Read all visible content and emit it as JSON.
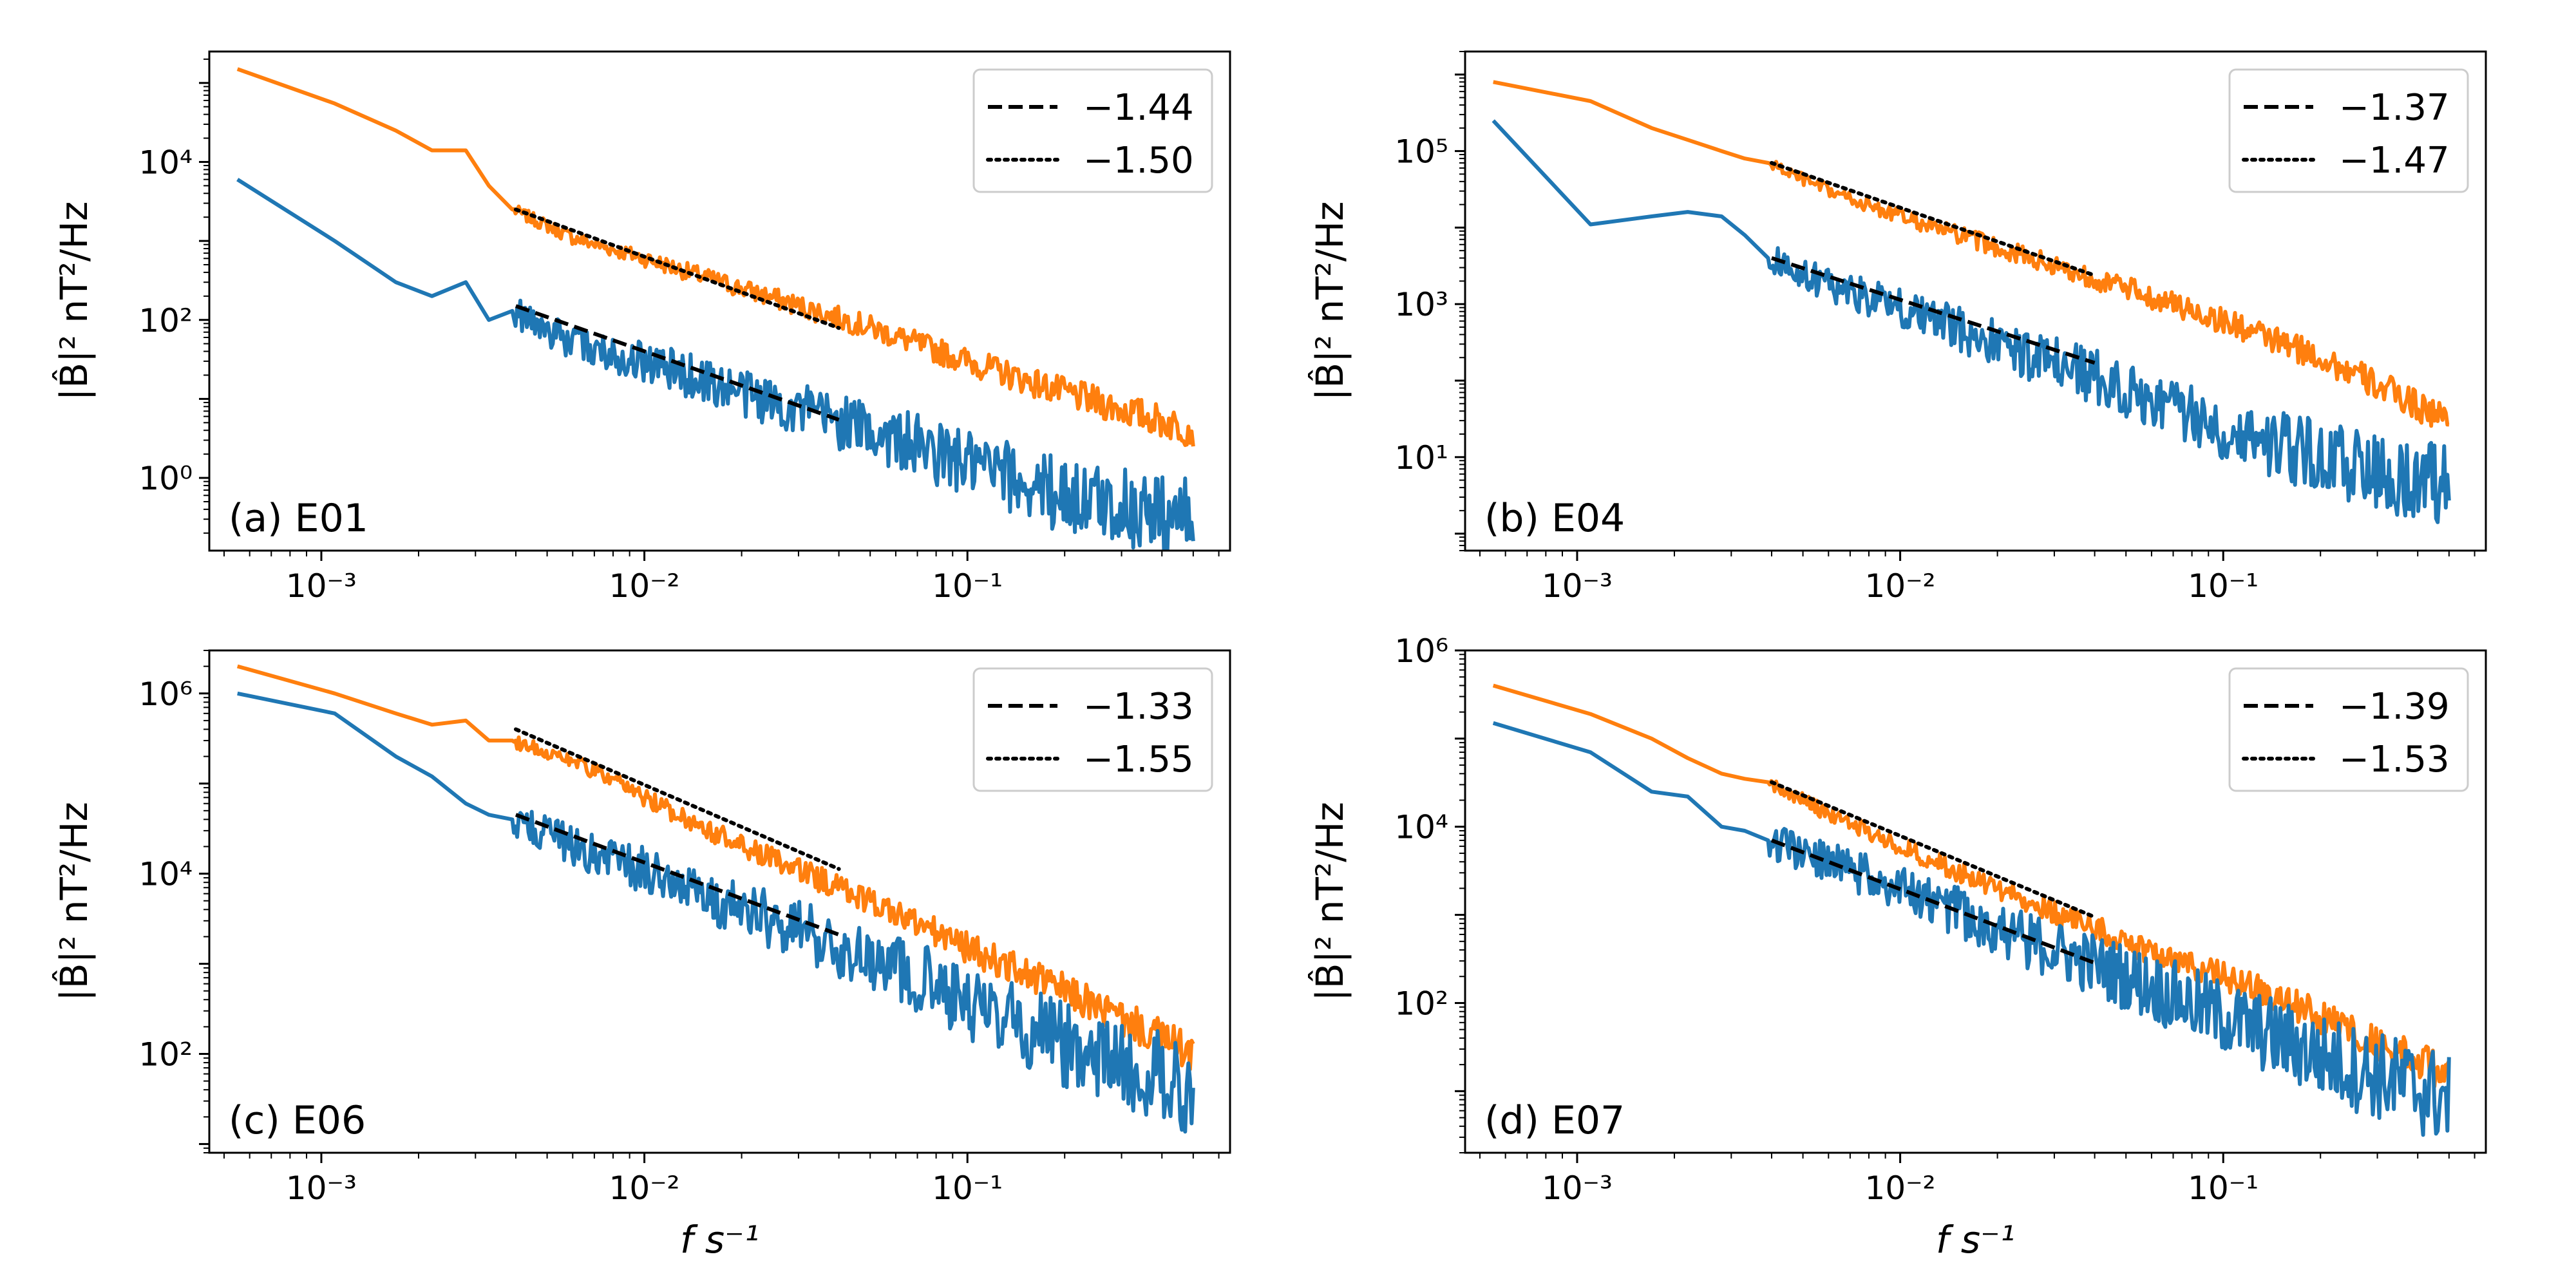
{
  "colors": {
    "lower": "#1f77b4",
    "upper": "#ff7f0e",
    "fit": "#000000",
    "frame": "#000000",
    "legend_border": "#cccccc"
  },
  "axis_labels": {
    "ylabel_html": "|B̂|² nT²/Hz",
    "xlabel": "f s⁻¹"
  },
  "x_ticks": [
    {
      "value": 0.001,
      "label": "10⁻³"
    },
    {
      "value": 0.01,
      "label": "10⁻²"
    },
    {
      "value": 0.1,
      "label": "10⁻¹"
    }
  ],
  "chart_data": [
    {
      "type": "line",
      "panel": "(a) E01",
      "xscale": "log",
      "yscale": "log",
      "xlim": [
        0.00045,
        0.65
      ],
      "ylim": [
        0.12,
        250000
      ],
      "yticks": [
        {
          "value": 1,
          "label": "10⁰"
        },
        {
          "value": 100,
          "label": "10²"
        },
        {
          "value": 10000,
          "label": "10⁴"
        }
      ],
      "series": [
        {
          "name": "upper",
          "color": "#ff7f0e",
          "x": [
            0.00055,
            0.0011,
            0.0017,
            0.0022,
            0.0028,
            0.0033,
            0.0039,
            0.006,
            0.01,
            0.02,
            0.05,
            0.1,
            0.2,
            0.5
          ],
          "y": [
            150000,
            55000,
            25000,
            14000,
            14000,
            5000,
            2500,
            1100,
            600,
            250,
            80,
            30,
            12,
            4
          ]
        },
        {
          "name": "lower",
          "color": "#1f77b4",
          "x": [
            0.00055,
            0.0011,
            0.0017,
            0.0022,
            0.0028,
            0.0033,
            0.0039,
            0.006,
            0.01,
            0.02,
            0.05,
            0.1,
            0.2,
            0.5
          ],
          "y": [
            6000,
            1000,
            300,
            200,
            300,
            100,
            130,
            50,
            30,
            12,
            4,
            1.5,
            0.6,
            0.3
          ]
        }
      ],
      "fits": [
        {
          "legend": "−1.44",
          "style": "dashed",
          "slope": -1.44,
          "x_range": [
            0.004,
            0.04
          ],
          "y_at_start": 150
        },
        {
          "legend": "−1.50",
          "style": "dotted",
          "slope": -1.5,
          "x_range": [
            0.004,
            0.04
          ],
          "y_at_start": 2500
        }
      ]
    },
    {
      "type": "line",
      "panel": "(b) E04",
      "xscale": "log",
      "yscale": "log",
      "xlim": [
        0.00045,
        0.65
      ],
      "ylim": [
        0.6,
        2000000
      ],
      "yticks": [
        {
          "value": 10,
          "label": "10¹"
        },
        {
          "value": 1000,
          "label": "10³"
        },
        {
          "value": 100000,
          "label": "10⁵"
        }
      ],
      "series": [
        {
          "name": "upper",
          "color": "#ff7f0e",
          "x": [
            0.00055,
            0.0011,
            0.0017,
            0.0022,
            0.0028,
            0.0033,
            0.0039,
            0.006,
            0.01,
            0.02,
            0.05,
            0.1,
            0.2,
            0.5
          ],
          "y": [
            800000,
            450000,
            200000,
            140000,
            100000,
            80000,
            70000,
            30000,
            14000,
            5500,
            1600,
            600,
            200,
            30
          ]
        },
        {
          "name": "lower",
          "color": "#1f77b4",
          "x": [
            0.00055,
            0.0011,
            0.0017,
            0.0022,
            0.0028,
            0.0033,
            0.0039,
            0.006,
            0.01,
            0.02,
            0.05,
            0.1,
            0.2,
            0.5
          ],
          "y": [
            250000,
            11000,
            14000,
            16000,
            14000,
            8000,
            4000,
            1800,
            900,
            300,
            80,
            25,
            10,
            4
          ]
        }
      ],
      "fits": [
        {
          "legend": "−1.37",
          "style": "dashed",
          "slope": -1.37,
          "x_range": [
            0.004,
            0.04
          ],
          "y_at_start": 4000
        },
        {
          "legend": "−1.47",
          "style": "dotted",
          "slope": -1.47,
          "x_range": [
            0.004,
            0.04
          ],
          "y_at_start": 70000
        }
      ]
    },
    {
      "type": "line",
      "panel": "(c) E06",
      "xscale": "log",
      "yscale": "log",
      "xlim": [
        0.00045,
        0.65
      ],
      "ylim": [
        8,
        3000000
      ],
      "yticks": [
        {
          "value": 100,
          "label": "10²"
        },
        {
          "value": 10000,
          "label": "10⁴"
        },
        {
          "value": 1000000,
          "label": "10⁶"
        }
      ],
      "series": [
        {
          "name": "upper",
          "color": "#ff7f0e",
          "x": [
            0.00055,
            0.0011,
            0.0017,
            0.0022,
            0.0028,
            0.0033,
            0.0039,
            0.006,
            0.01,
            0.02,
            0.05,
            0.1,
            0.2,
            0.5
          ],
          "y": [
            2000000,
            1000000,
            600000,
            450000,
            500000,
            300000,
            300000,
            180000,
            70000,
            20000,
            5000,
            1500,
            500,
            100
          ]
        },
        {
          "name": "lower",
          "color": "#1f77b4",
          "x": [
            0.00055,
            0.0011,
            0.0017,
            0.0022,
            0.0028,
            0.0033,
            0.0039,
            0.006,
            0.01,
            0.02,
            0.05,
            0.1,
            0.2,
            0.5
          ],
          "y": [
            1000000,
            600000,
            200000,
            120000,
            60000,
            45000,
            40000,
            20000,
            11000,
            4000,
            1200,
            400,
            120,
            40
          ]
        }
      ],
      "fits": [
        {
          "legend": "−1.33",
          "style": "dashed",
          "slope": -1.33,
          "x_range": [
            0.004,
            0.04
          ],
          "y_at_start": 45000
        },
        {
          "legend": "−1.55",
          "style": "dotted",
          "slope": -1.55,
          "x_range": [
            0.004,
            0.04
          ],
          "y_at_start": 400000
        }
      ]
    },
    {
      "type": "line",
      "panel": "(d) E07",
      "xscale": "log",
      "yscale": "log",
      "xlim": [
        0.00045,
        0.65
      ],
      "ylim": [
        2,
        1000000
      ],
      "yticks": [
        {
          "value": 100,
          "label": "10²"
        },
        {
          "value": 10000,
          "label": "10⁴"
        },
        {
          "value": 1000000,
          "label": "10⁶"
        }
      ],
      "series": [
        {
          "name": "upper",
          "color": "#ff7f0e",
          "x": [
            0.00055,
            0.0011,
            0.0017,
            0.0022,
            0.0028,
            0.0033,
            0.0039,
            0.006,
            0.01,
            0.02,
            0.05,
            0.1,
            0.2,
            0.5
          ],
          "y": [
            400000,
            190000,
            100000,
            60000,
            40000,
            35000,
            32000,
            14000,
            6000,
            2000,
            500,
            200,
            70,
            15
          ]
        },
        {
          "name": "lower",
          "color": "#1f77b4",
          "x": [
            0.00055,
            0.0011,
            0.0017,
            0.0022,
            0.0028,
            0.0033,
            0.0039,
            0.006,
            0.01,
            0.02,
            0.05,
            0.1,
            0.2,
            0.5
          ],
          "y": [
            150000,
            70000,
            25000,
            22000,
            10000,
            9000,
            7000,
            4000,
            2000,
            700,
            200,
            70,
            25,
            8
          ]
        }
      ],
      "fits": [
        {
          "legend": "−1.39",
          "style": "dashed",
          "slope": -1.39,
          "x_range": [
            0.004,
            0.04
          ],
          "y_at_start": 7000
        },
        {
          "legend": "−1.53",
          "style": "dotted",
          "slope": -1.53,
          "x_range": [
            0.004,
            0.04
          ],
          "y_at_start": 32000
        }
      ]
    }
  ]
}
